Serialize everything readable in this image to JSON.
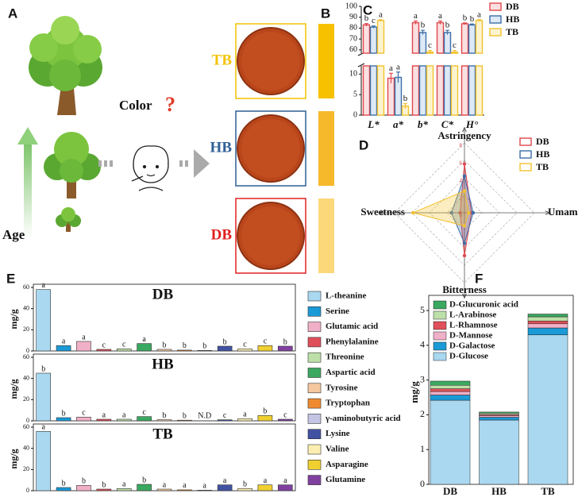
{
  "panels": [
    "A",
    "B",
    "C",
    "D",
    "E",
    "F"
  ],
  "panel_a": {
    "axis_label": "Age",
    "question": "Color",
    "question_mark": "?"
  },
  "panel_b": {
    "dishes": [
      {
        "label": "TB",
        "color": "#f2c200",
        "swatch": "#f7c100"
      },
      {
        "label": "HB",
        "color": "#2f5f96",
        "swatch": "#f7b92c"
      },
      {
        "label": "DB",
        "color": "#e02020",
        "swatch": "#fdd87a"
      }
    ]
  },
  "chart_data": [
    {
      "type": "broken_bar",
      "categories": [
        "L*",
        "a*",
        "b*",
        "C*",
        "H°"
      ],
      "ylim_lower": [
        0,
        12
      ],
      "yticks_lower": [
        0,
        5,
        10
      ],
      "ylim_upper": [
        57,
        100
      ],
      "yticks_upper": [
        60,
        70,
        80,
        90,
        100
      ],
      "legend": "upper right",
      "series": [
        {
          "name": "DB",
          "color": "#e0474c",
          "fill": "#fbe0e1",
          "values": [
            83,
            9,
            85,
            85,
            84
          ],
          "errors": [
            1.2,
            1.2,
            1.5,
            1.5,
            0.8
          ],
          "labels": [
            "b",
            "a",
            "a",
            "a",
            "b"
          ]
        },
        {
          "name": "HB",
          "color": "#3d6ea8",
          "fill": "#dde9f6",
          "values": [
            81,
            9.2,
            76,
            76,
            83
          ],
          "errors": [
            1.0,
            1.3,
            2.0,
            2.0,
            0.8
          ],
          "labels": [
            "c",
            "a",
            "b",
            "b",
            "b"
          ]
        },
        {
          "name": "TB",
          "color": "#f2c230",
          "fill": "#fdf3cf",
          "values": [
            87,
            2.2,
            58,
            58,
            87
          ],
          "errors": [
            0.8,
            0.6,
            1.5,
            1.5,
            0.8
          ],
          "labels": [
            "a",
            "b",
            "c",
            "c",
            "a"
          ]
        }
      ]
    },
    {
      "type": "radar",
      "axes": [
        "Astringency",
        "Umami",
        "Bitterness",
        "Sweetness"
      ],
      "rlim": [
        0,
        8
      ],
      "rticks": [
        0,
        2,
        4,
        6,
        8
      ],
      "legend": "upper right",
      "series": [
        {
          "name": "DB",
          "color": "#e0474c",
          "values": [
            5.6,
            0.8,
            4.9,
            0.5
          ]
        },
        {
          "name": "HB",
          "color": "#3d6ea8",
          "values": [
            4.2,
            1.0,
            3.5,
            1.5
          ]
        },
        {
          "name": "TB",
          "color": "#f2c230",
          "values": [
            2.5,
            0.5,
            1.5,
            5.9
          ]
        }
      ]
    },
    {
      "type": "bar_panels",
      "ylabel": "mg/g",
      "ylim": [
        0,
        60
      ],
      "yticks": [
        0,
        20,
        40,
        60
      ],
      "categories": [
        "L-theanine",
        "Serine",
        "Glutamic acid",
        "Phenylalanine",
        "Threonine",
        "Aspartic acid",
        "Tyrosine",
        "Tryptophan",
        "γ-aminobutyric acid",
        "Lysine",
        "Valine",
        "Asparagine",
        "Glutamine"
      ],
      "colors": [
        "#a9d8f0",
        "#1a9ad6",
        "#f0b0c8",
        "#e0505a",
        "#bde0a8",
        "#3aa860",
        "#f5c8a0",
        "#f08a30",
        "#c4c4e4",
        "#4252a2",
        "#fbeeb0",
        "#f0d030",
        "#8040a0"
      ],
      "panels": [
        {
          "title": "DB",
          "values": [
            58,
            5,
            9,
            1.5,
            2,
            7,
            1.5,
            0.8,
            0.5,
            4.5,
            2,
            5,
            4.5
          ],
          "labels": [
            "a",
            "a",
            "a",
            "c",
            "c",
            "a",
            "b",
            "b",
            "b",
            "b",
            "c",
            "c",
            "b"
          ]
        },
        {
          "title": "HB",
          "values": [
            45,
            3,
            3.5,
            1.5,
            1.5,
            4,
            1,
            0.6,
            null,
            1,
            2,
            5,
            1.5
          ],
          "labels": [
            "b",
            "b",
            "c",
            "a",
            "a",
            "c",
            "b",
            "b",
            "N.D",
            "c",
            "a",
            "b",
            "c"
          ]
        },
        {
          "title": "TB",
          "values": [
            56,
            3,
            5,
            1.5,
            2,
            6,
            1.5,
            0.8,
            0.5,
            5.5,
            2,
            5.5,
            5.5
          ],
          "labels": [
            "a",
            "b",
            "b",
            "b",
            "a",
            "b",
            "a",
            "a",
            "a",
            "a",
            "b",
            "a",
            "a"
          ]
        }
      ]
    },
    {
      "type": "stacked_bar",
      "ylabel": "mg/g",
      "categories": [
        "DB",
        "HB",
        "TB"
      ],
      "ylim": [
        0,
        5.3
      ],
      "yticks": [
        0,
        1,
        2,
        3,
        4,
        5
      ],
      "legend": "upper left",
      "series": [
        {
          "name": "D-Glucose",
          "color": "#a9d8f0",
          "values": [
            2.42,
            1.85,
            4.3
          ]
        },
        {
          "name": "D-Galactose",
          "color": "#1a9ad6",
          "values": [
            0.15,
            0.08,
            0.2
          ]
        },
        {
          "name": "D-Mannose",
          "color": "#f0b0c8",
          "values": [
            0.1,
            0.05,
            0.12
          ]
        },
        {
          "name": "L-Rhamnose",
          "color": "#e0505a",
          "values": [
            0.08,
            0.03,
            0.08
          ]
        },
        {
          "name": "L-Arabinose",
          "color": "#bde0a8",
          "values": [
            0.1,
            0.04,
            0.12
          ]
        },
        {
          "name": "D-Glucuronic acid",
          "color": "#3aa860",
          "values": [
            0.12,
            0.03,
            0.08
          ]
        }
      ]
    }
  ]
}
